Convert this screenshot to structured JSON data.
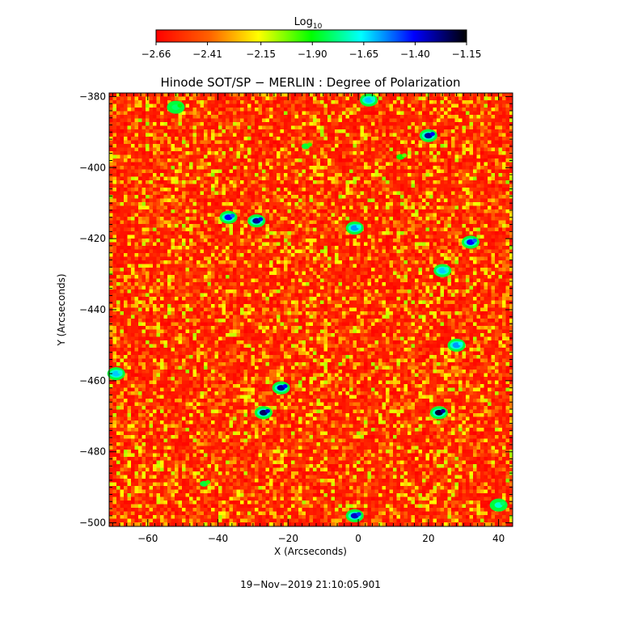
{
  "chart_data": {
    "type": "heatmap",
    "title": "Hinode SOT/SP − MERLIN : Degree of Polarization",
    "xlabel": "X (Arcseconds)",
    "ylabel": "Y (Arcseconds)",
    "xlim": [
      -71,
      44
    ],
    "ylim": [
      -501,
      -379
    ],
    "x_ticks": [
      -60,
      -40,
      -20,
      0,
      20,
      40
    ],
    "x_tick_labels": [
      "−60",
      "−40",
      "−20",
      "0",
      "20",
      "40"
    ],
    "y_ticks": [
      -380,
      -400,
      -420,
      -440,
      -460,
      -480,
      -500
    ],
    "y_tick_labels": [
      "−380",
      "−400",
      "−420",
      "−440",
      "−460",
      "−480",
      "−500"
    ],
    "colorbar": {
      "title": "Log",
      "title_subscript": "10",
      "range": [
        -2.66,
        -1.15
      ],
      "ticks": [
        -2.66,
        -2.41,
        -2.15,
        -1.9,
        -1.65,
        -1.4,
        -1.15
      ],
      "tick_labels": [
        "−2.66",
        "−2.41",
        "−2.15",
        "−1.90",
        "−1.65",
        "−1.40",
        "−1.15"
      ],
      "colors": [
        "#ff0000",
        "#ff6000",
        "#ffff00",
        "#00ff00",
        "#00ffff",
        "#0000ff",
        "#000000"
      ]
    },
    "features": [
      {
        "x": -29,
        "y": -415,
        "value": -1.3
      },
      {
        "x": -37,
        "y": -414,
        "value": -1.4
      },
      {
        "x": -1,
        "y": -417,
        "value": -1.55
      },
      {
        "x": 20,
        "y": -391,
        "value": -1.3
      },
      {
        "x": 32,
        "y": -421,
        "value": -1.4
      },
      {
        "x": 24,
        "y": -429,
        "value": -1.6
      },
      {
        "x": 28,
        "y": -450,
        "value": -1.55
      },
      {
        "x": -22,
        "y": -462,
        "value": -1.3
      },
      {
        "x": -27,
        "y": -469,
        "value": -1.25
      },
      {
        "x": 23,
        "y": -469,
        "value": -1.2
      },
      {
        "x": -1,
        "y": -498,
        "value": -1.35
      },
      {
        "x": 3,
        "y": -381,
        "value": -1.6
      },
      {
        "x": -52,
        "y": -383,
        "value": -1.8
      },
      {
        "x": -69,
        "y": -458,
        "value": -1.6
      },
      {
        "x": 40,
        "y": -495,
        "value": -1.7
      },
      {
        "x": -15,
        "y": -394,
        "value": -1.85
      },
      {
        "x": 12,
        "y": -397,
        "value": -1.9
      },
      {
        "x": -44,
        "y": -489,
        "value": -1.85
      }
    ],
    "timestamp": "19−Nov−2019 21:10:05.901"
  }
}
